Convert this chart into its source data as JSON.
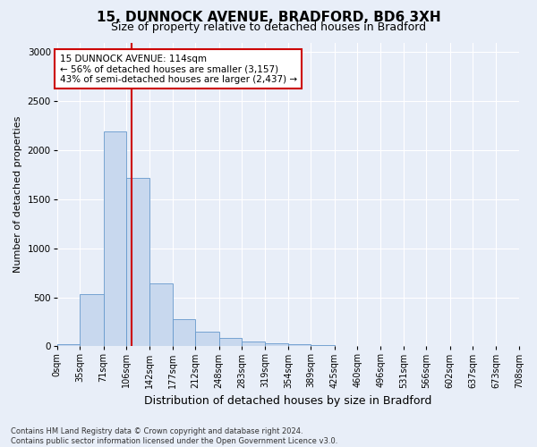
{
  "title_line1": "15, DUNNOCK AVENUE, BRADFORD, BD6 3XH",
  "title_line2": "Size of property relative to detached houses in Bradford",
  "xlabel": "Distribution of detached houses by size in Bradford",
  "ylabel": "Number of detached properties",
  "footer_line1": "Contains HM Land Registry data © Crown copyright and database right 2024.",
  "footer_line2": "Contains public sector information licensed under the Open Government Licence v3.0.",
  "annotation_line1": "15 DUNNOCK AVENUE: 114sqm",
  "annotation_line2": "← 56% of detached houses are smaller (3,157)",
  "annotation_line3": "43% of semi-detached houses are larger (2,437) →",
  "red_line_x": 114,
  "bin_edges": [
    0,
    35,
    71,
    106,
    142,
    177,
    212,
    248,
    283,
    319,
    354,
    389,
    425,
    460,
    496,
    531,
    566,
    602,
    637,
    673,
    708
  ],
  "bar_heights": [
    25,
    530,
    2190,
    1720,
    640,
    275,
    145,
    85,
    50,
    30,
    22,
    12,
    5,
    2,
    0,
    0,
    0,
    0,
    0,
    0
  ],
  "bar_color": "#c8d8ee",
  "bar_edge_color": "#6699cc",
  "red_line_color": "#cc0000",
  "bg_color": "#e8eef8",
  "grid_color": "#ffffff",
  "annotation_box_facecolor": "#ffffff",
  "annotation_box_edgecolor": "#cc0000",
  "ylim": [
    0,
    3100
  ],
  "yticks": [
    0,
    500,
    1000,
    1500,
    2000,
    2500,
    3000
  ],
  "title1_fontsize": 11,
  "title2_fontsize": 9,
  "ylabel_fontsize": 8,
  "xlabel_fontsize": 9,
  "tick_fontsize": 7,
  "annotation_fontsize": 7.5,
  "footer_fontsize": 6
}
